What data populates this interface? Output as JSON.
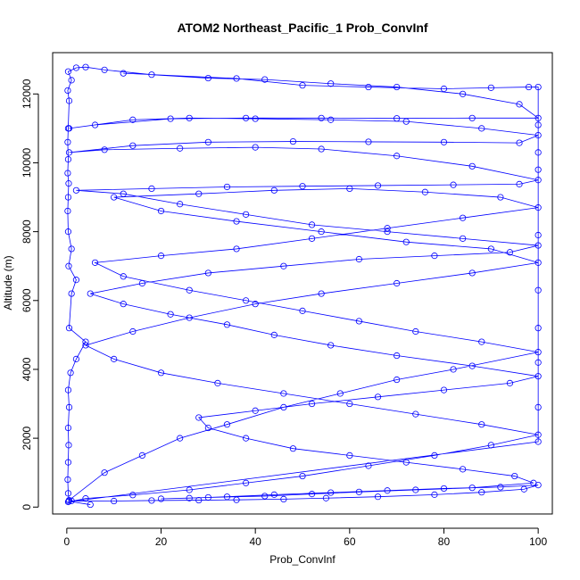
{
  "chart_data": {
    "type": "scatter",
    "connected": true,
    "title": "ATOM2 Northeast_Pacific_1 Prob_ConvInf",
    "xlabel": "Prob_ConvInf",
    "ylabel": "Altitude (m)",
    "xlim": [
      -3,
      103
    ],
    "ylim": [
      -200,
      13200
    ],
    "xticks": [
      0,
      20,
      40,
      60,
      80,
      100
    ],
    "xtick_labels": [
      "0",
      "20",
      "40",
      "60",
      "80",
      "100"
    ],
    "yticks": [
      0,
      2000,
      4000,
      6000,
      8000,
      10000,
      12000
    ],
    "ytick_labels": [
      "0",
      "2000",
      "4000",
      "6000",
      "8000",
      "10000",
      "12000"
    ],
    "series_color": "#0000ff",
    "marker": "open-circle",
    "grid": false,
    "series": [
      {
        "points": [
          [
            5,
            70
          ],
          [
            0.4,
            170
          ],
          [
            1,
            180
          ],
          [
            10,
            175
          ],
          [
            18,
            190
          ],
          [
            28,
            200
          ],
          [
            36,
            210
          ],
          [
            46,
            230
          ],
          [
            55,
            260
          ],
          [
            66,
            300
          ],
          [
            78,
            360
          ],
          [
            88,
            430
          ],
          [
            97,
            520
          ],
          [
            100,
            640
          ],
          [
            92,
            580
          ],
          [
            80,
            540
          ],
          [
            68,
            480
          ],
          [
            56,
            420
          ],
          [
            44,
            360
          ],
          [
            34,
            300
          ],
          [
            26,
            260
          ],
          [
            20,
            240
          ],
          [
            30,
            280
          ],
          [
            42,
            320
          ],
          [
            52,
            380
          ],
          [
            62,
            440
          ],
          [
            74,
            500
          ],
          [
            86,
            560
          ],
          [
            99,
            700
          ],
          [
            95,
            900
          ],
          [
            84,
            1100
          ],
          [
            72,
            1300
          ],
          [
            60,
            1500
          ],
          [
            48,
            1700
          ],
          [
            38,
            2000
          ],
          [
            30,
            2300
          ],
          [
            28,
            2600
          ],
          [
            40,
            2800
          ],
          [
            52,
            3000
          ],
          [
            66,
            3200
          ],
          [
            80,
            3400
          ],
          [
            94,
            3600
          ],
          [
            100,
            3800
          ],
          [
            86,
            4100
          ],
          [
            70,
            4400
          ],
          [
            56,
            4700
          ],
          [
            44,
            5000
          ],
          [
            34,
            5300
          ],
          [
            22,
            5600
          ],
          [
            12,
            5900
          ],
          [
            5,
            6200
          ],
          [
            16,
            6500
          ],
          [
            30,
            6800
          ],
          [
            46,
            7000
          ],
          [
            62,
            7200
          ],
          [
            78,
            7300
          ],
          [
            94,
            7400
          ],
          [
            100,
            7600
          ],
          [
            84,
            7800
          ],
          [
            68,
            8000
          ],
          [
            52,
            8200
          ],
          [
            38,
            8500
          ],
          [
            24,
            8800
          ],
          [
            12,
            9100
          ],
          [
            2,
            9200
          ],
          [
            18,
            9250
          ],
          [
            34,
            9300
          ],
          [
            50,
            9320
          ],
          [
            66,
            9340
          ],
          [
            82,
            9360
          ],
          [
            96,
            9380
          ],
          [
            100,
            9500
          ],
          [
            86,
            9900
          ],
          [
            70,
            10200
          ],
          [
            54,
            10400
          ],
          [
            40,
            10450
          ],
          [
            24,
            10420
          ],
          [
            8,
            10380
          ],
          [
            0.5,
            10300
          ],
          [
            14,
            10500
          ],
          [
            30,
            10600
          ],
          [
            48,
            10620
          ],
          [
            64,
            10610
          ],
          [
            80,
            10600
          ],
          [
            96,
            10580
          ],
          [
            100,
            10800
          ],
          [
            88,
            11000
          ],
          [
            72,
            11200
          ],
          [
            56,
            11250
          ],
          [
            40,
            11280
          ],
          [
            26,
            11300
          ],
          [
            14,
            11250
          ],
          [
            0.5,
            11000
          ],
          [
            6,
            11100
          ],
          [
            22,
            11280
          ],
          [
            38,
            11300
          ],
          [
            54,
            11300
          ],
          [
            70,
            11290
          ],
          [
            86,
            11300
          ],
          [
            100,
            11300
          ],
          [
            96,
            11700
          ],
          [
            84,
            12000
          ],
          [
            70,
            12200
          ],
          [
            56,
            12300
          ],
          [
            42,
            12420
          ],
          [
            30,
            12460
          ],
          [
            18,
            12560
          ],
          [
            8,
            12700
          ],
          [
            4,
            12780
          ],
          [
            2,
            12760
          ],
          [
            0.3,
            12650
          ],
          [
            1,
            12400
          ],
          [
            0.2,
            12100
          ],
          [
            0.5,
            11800
          ],
          [
            0.3,
            11000
          ],
          [
            0.2,
            10600
          ],
          [
            0.3,
            10100
          ],
          [
            0.2,
            9700
          ],
          [
            0.4,
            9400
          ],
          [
            0.3,
            9000
          ],
          [
            0.2,
            8600
          ],
          [
            0.3,
            8000
          ],
          [
            1,
            7500
          ],
          [
            0.4,
            7000
          ],
          [
            2,
            6600
          ],
          [
            1,
            6200
          ],
          [
            0.5,
            5200
          ],
          [
            4,
            4800
          ],
          [
            2,
            4300
          ],
          [
            0.8,
            3900
          ],
          [
            0.3,
            3400
          ],
          [
            0.5,
            2900
          ],
          [
            0.3,
            2300
          ],
          [
            0.4,
            1800
          ],
          [
            0.3,
            1300
          ],
          [
            0.2,
            800
          ],
          [
            0.3,
            400
          ],
          [
            0.5,
            200
          ],
          [
            8,
            1000
          ],
          [
            16,
            1500
          ],
          [
            24,
            2000
          ],
          [
            34,
            2400
          ],
          [
            46,
            2900
          ],
          [
            58,
            3300
          ],
          [
            70,
            3700
          ],
          [
            82,
            4000
          ],
          [
            100,
            4500
          ],
          [
            88,
            4800
          ],
          [
            74,
            5100
          ],
          [
            62,
            5400
          ],
          [
            50,
            5700
          ],
          [
            38,
            6000
          ],
          [
            26,
            6300
          ],
          [
            12,
            6700
          ],
          [
            6,
            7100
          ],
          [
            20,
            7300
          ],
          [
            36,
            7500
          ],
          [
            52,
            7800
          ],
          [
            68,
            8100
          ],
          [
            84,
            8400
          ],
          [
            100,
            8700
          ],
          [
            92,
            9000
          ],
          [
            76,
            9150
          ],
          [
            60,
            9250
          ],
          [
            44,
            9200
          ],
          [
            28,
            9100
          ],
          [
            10,
            9000
          ],
          [
            20,
            8600
          ],
          [
            36,
            8300
          ],
          [
            54,
            8000
          ],
          [
            72,
            7700
          ],
          [
            90,
            7500
          ],
          [
            100,
            7100
          ],
          [
            86,
            6800
          ],
          [
            70,
            6500
          ],
          [
            54,
            6200
          ],
          [
            40,
            5900
          ],
          [
            26,
            5500
          ],
          [
            14,
            5100
          ],
          [
            4,
            4700
          ],
          [
            10,
            4300
          ],
          [
            20,
            3900
          ],
          [
            32,
            3600
          ],
          [
            46,
            3300
          ],
          [
            60,
            3000
          ],
          [
            74,
            2700
          ],
          [
            88,
            2400
          ],
          [
            100,
            2100
          ],
          [
            90,
            1800
          ],
          [
            78,
            1500
          ],
          [
            64,
            1200
          ],
          [
            50,
            900
          ],
          [
            38,
            700
          ],
          [
            26,
            500
          ],
          [
            14,
            350
          ],
          [
            4,
            250
          ],
          [
            0.3,
            150
          ],
          [
            100,
            1900
          ],
          [
            100,
            2900
          ],
          [
            100,
            4200
          ],
          [
            100,
            5200
          ],
          [
            100,
            6300
          ],
          [
            100,
            7900
          ],
          [
            100,
            9800
          ],
          [
            100,
            10300
          ],
          [
            100,
            11100
          ],
          [
            100,
            12200
          ],
          [
            98,
            12200
          ],
          [
            90,
            12180
          ],
          [
            80,
            12150
          ],
          [
            64,
            12200
          ],
          [
            50,
            12250
          ],
          [
            36,
            12450
          ],
          [
            12,
            12600
          ]
        ]
      }
    ]
  }
}
